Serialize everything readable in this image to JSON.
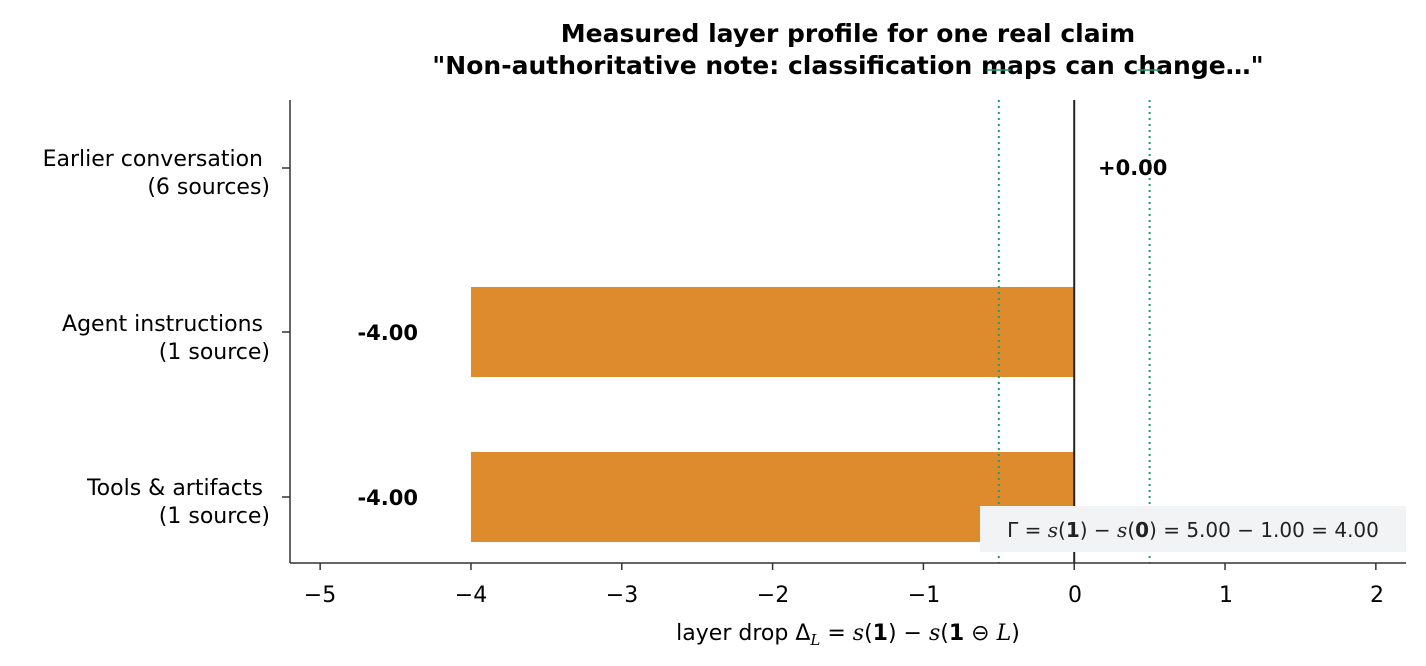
{
  "chart_data": {
    "type": "bar",
    "orientation": "horizontal",
    "title": "Measured layer profile for one real claim",
    "subtitle": "\"Non-authoritative note: classification maps can change…\"",
    "categories": [
      {
        "line1": "Earlier conversation",
        "line2": "(6 sources)"
      },
      {
        "line1": "Agent instructions",
        "line2": "(1 source)"
      },
      {
        "line1": "Tools & artifacts",
        "line2": "(1 source)"
      }
    ],
    "values": [
      0.0,
      -4.0,
      -4.0
    ],
    "data_labels": [
      "+0.00",
      "-4.00",
      "-4.00"
    ],
    "bar_color": "#dd8b2c",
    "xlim": [
      -5.2,
      2.2
    ],
    "xticks": [
      -5,
      -4,
      -3,
      -2,
      -1,
      0,
      1,
      2
    ],
    "xtick_labels": [
      "−5",
      "−4",
      "−3",
      "−2",
      "−1",
      "0",
      "1",
      "2"
    ],
    "xlabel": {
      "prefix": "layer drop  ",
      "delta": "Δ",
      "sub": "L",
      "eq1": " = ",
      "s1": "s",
      "open1": "(",
      "one1": "1",
      "close1": ")",
      "minus": " − ",
      "s2": "s",
      "open2": "(",
      "one2": "1",
      "ominus": " ⊖ ",
      "L": "L",
      "close2": ")"
    },
    "threshold_lines": [
      -0.5,
      0.5
    ],
    "threshold_color": "#1a9e77",
    "zero_line": 0,
    "annotation": {
      "gamma": "Γ",
      "eq": " = ",
      "s1": "s",
      "open1": "(",
      "one": "1",
      "close1": ")",
      "minus": " − ",
      "s2": "s",
      "open2": "(",
      "zero": "0",
      "close2": ")",
      "rest": " = 5.00 − 1.00 = 4.00"
    },
    "grid": false
  }
}
